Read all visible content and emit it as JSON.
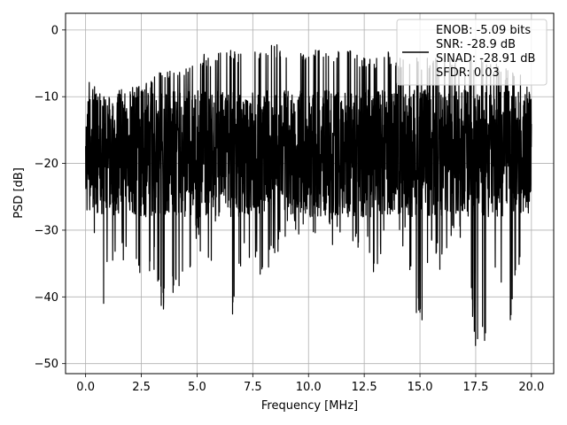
{
  "chart_data": {
    "type": "line",
    "title": "",
    "xlabel": "Frequency [MHz]",
    "ylabel": "PSD [dB]",
    "xlim": [
      -0.9,
      21.0
    ],
    "ylim": [
      -51.5,
      2.5
    ],
    "xticks": [
      0.0,
      2.5,
      5.0,
      7.5,
      10.0,
      12.5,
      15.0,
      17.5,
      20.0
    ],
    "xtick_labels": [
      "0.0",
      "2.5",
      "5.0",
      "7.5",
      "10.0",
      "12.5",
      "15.0",
      "17.5",
      "20.0"
    ],
    "yticks": [
      0,
      -10,
      -20,
      -30,
      -40,
      -50
    ],
    "ytick_labels": [
      "0",
      "−10",
      "−20",
      "−30",
      "−40",
      "−50"
    ],
    "grid": true,
    "legend_position": "top-right",
    "series": [
      {
        "name": "ENOB: -5.09 bits\nSNR: -28.9 dB\nSINAD: -28.91 dB\nSFDR: 0.03",
        "color": "#000000",
        "x": [
          0.0,
          0.1,
          0.3,
          0.5,
          0.8,
          1.0,
          1.5,
          2.0,
          2.5,
          3.0,
          3.5,
          4.0,
          4.5,
          5.0,
          5.5,
          6.0,
          6.5,
          7.0,
          7.5,
          8.0,
          8.5,
          9.0,
          9.5,
          10.0,
          10.5,
          11.0,
          11.5,
          12.0,
          12.5,
          13.0,
          13.5,
          14.0,
          14.5,
          15.0,
          15.5,
          16.0,
          16.5,
          17.0,
          17.5,
          18.0,
          18.5,
          19.0,
          19.5,
          20.0
        ],
        "upper": [
          -11,
          -7,
          -8,
          -9,
          -10,
          -10,
          -9,
          -8,
          -8,
          -7,
          -6,
          -6,
          -5,
          -3,
          -4,
          -3,
          -3,
          -3,
          -3,
          -3,
          -2,
          -3,
          -3,
          -3,
          -3,
          -3,
          -3,
          -3,
          -4,
          -4,
          -3,
          -4,
          -4,
          -4,
          -4,
          -4,
          -4,
          -5,
          -4,
          -5,
          -5,
          -6,
          -6,
          -9
        ],
        "lower": [
          -22,
          -45,
          -33,
          -30,
          -42,
          -33,
          -38,
          -31,
          -42,
          -36,
          -43,
          -40,
          -38,
          -33,
          -37,
          -30,
          -48,
          -35,
          -35,
          -38,
          -35,
          -33,
          -31,
          -30,
          -31,
          -32,
          -35,
          -33,
          -34,
          -37,
          -34,
          -33,
          -35,
          -46,
          -35,
          -37,
          -34,
          -34,
          -49,
          -46,
          -35,
          -45,
          -35,
          -30
        ],
        "typical_band": [
          -28,
          -9
        ]
      }
    ]
  }
}
